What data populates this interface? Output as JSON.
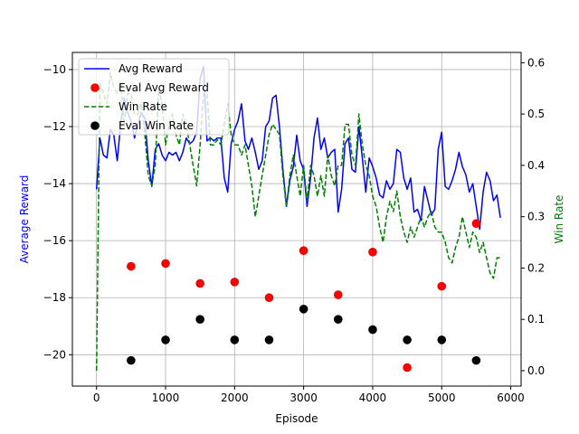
{
  "chart_data": {
    "type": "line",
    "xlabel": "Episode",
    "ylabel": "Average Reward",
    "y2label": "Win Rate",
    "xlim": [
      -350,
      6150
    ],
    "ylim": [
      -21.1,
      -9.4
    ],
    "y2lim": [
      -0.03,
      0.62
    ],
    "xticks": [
      0,
      1000,
      2000,
      3000,
      4000,
      5000,
      6000
    ],
    "yticks": [
      -20,
      -18,
      -16,
      -14,
      -12,
      -10
    ],
    "y2ticks": [
      0.0,
      0.1,
      0.2,
      0.3,
      0.4,
      0.5,
      0.6
    ],
    "grid": true,
    "legend_position": "upper-left",
    "colors": {
      "avg_reward": "#0000ff",
      "eval_avg_reward": "#ff0000",
      "win_rate": "#008000",
      "eval_win_rate": "#000000",
      "ylabel": "#0000ff",
      "y2label": "#008000"
    },
    "legend": [
      {
        "key": "avg_reward",
        "label": "Avg Reward"
      },
      {
        "key": "eval_avg_reward",
        "label": "Eval Avg Reward"
      },
      {
        "key": "win_rate",
        "label": "Win Rate"
      },
      {
        "key": "eval_win_rate",
        "label": "Eval Win Rate"
      }
    ],
    "series": [
      {
        "key": "avg_reward",
        "name": "Avg Reward",
        "axis": "left",
        "style": "solid",
        "x": [
          0,
          50,
          100,
          150,
          200,
          250,
          300,
          350,
          400,
          450,
          500,
          550,
          600,
          650,
          700,
          750,
          800,
          850,
          900,
          950,
          1000,
          1050,
          1100,
          1150,
          1200,
          1250,
          1300,
          1350,
          1400,
          1450,
          1500,
          1550,
          1600,
          1650,
          1700,
          1750,
          1800,
          1850,
          1900,
          1950,
          2000,
          2050,
          2100,
          2150,
          2200,
          2250,
          2300,
          2350,
          2400,
          2450,
          2500,
          2550,
          2600,
          2650,
          2700,
          2750,
          2800,
          2850,
          2900,
          2950,
          3000,
          3050,
          3100,
          3150,
          3200,
          3250,
          3300,
          3350,
          3400,
          3450,
          3500,
          3550,
          3600,
          3650,
          3700,
          3750,
          3800,
          3850,
          3900,
          3950,
          4000,
          4050,
          4100,
          4150,
          4200,
          4250,
          4300,
          4350,
          4400,
          4450,
          4500,
          4550,
          4600,
          4650,
          4700,
          4750,
          4800,
          4850,
          4900,
          4950,
          5000,
          5050,
          5100,
          5150,
          5200,
          5250,
          5300,
          5350,
          5400,
          5450,
          5500,
          5550,
          5600,
          5650,
          5700,
          5750,
          5800,
          5850
        ],
        "y": [
          -14.2,
          -12.4,
          -13.0,
          -13.1,
          -12.1,
          -12.3,
          -13.2,
          -11.9,
          -11.0,
          -11.5,
          -11.8,
          -12.4,
          -11.9,
          -11.5,
          -11.7,
          -13.2,
          -14.1,
          -12.8,
          -12.6,
          -13.0,
          -13.2,
          -12.9,
          -13.0,
          -12.9,
          -13.2,
          -12.9,
          -12.4,
          -12.6,
          -12.5,
          -12.2,
          -10.3,
          -9.9,
          -12.5,
          -12.4,
          -12.5,
          -12.4,
          -12.4,
          -13.8,
          -14.3,
          -12.6,
          -12.1,
          -11.8,
          -11.2,
          -12.5,
          -12.8,
          -12.4,
          -12.9,
          -13.5,
          -13.2,
          -12.0,
          -11.8,
          -11.0,
          -10.9,
          -12.0,
          -13.5,
          -14.8,
          -13.9,
          -13.4,
          -12.3,
          -13.2,
          -13.5,
          -14.8,
          -13.8,
          -12.4,
          -11.7,
          -12.8,
          -12.4,
          -13.1,
          -12.9,
          -12.8,
          -15.0,
          -14.2,
          -12.6,
          -12.4,
          -13.5,
          -13.6,
          -12.0,
          -13.1,
          -14.3,
          -13.1,
          -13.4,
          -13.8,
          -14.4,
          -14.5,
          -13.9,
          -14.2,
          -14.0,
          -12.8,
          -12.9,
          -13.8,
          -14.2,
          -13.8,
          -15.0,
          -14.9,
          -15.3,
          -14.1,
          -14.6,
          -15.1,
          -14.9,
          -12.8,
          -12.2,
          -14.1,
          -14.2,
          -13.9,
          -13.5,
          -12.9,
          -13.4,
          -13.7,
          -14.3,
          -14.0,
          -14.8,
          -15.6,
          -14.3,
          -13.6,
          -13.9,
          -14.6,
          -14.4,
          -15.2
        ]
      },
      {
        "key": "win_rate",
        "name": "Win Rate",
        "axis": "right",
        "style": "dashed",
        "x": [
          0,
          50,
          100,
          150,
          200,
          250,
          300,
          350,
          400,
          450,
          500,
          550,
          600,
          650,
          700,
          750,
          800,
          850,
          900,
          950,
          1000,
          1050,
          1100,
          1150,
          1200,
          1250,
          1300,
          1350,
          1400,
          1450,
          1500,
          1550,
          1600,
          1650,
          1700,
          1750,
          1800,
          1850,
          1900,
          1950,
          2000,
          2050,
          2100,
          2150,
          2200,
          2250,
          2300,
          2350,
          2400,
          2450,
          2500,
          2550,
          2600,
          2650,
          2700,
          2750,
          2800,
          2850,
          2900,
          2950,
          3000,
          3050,
          3100,
          3150,
          3200,
          3250,
          3300,
          3350,
          3400,
          3450,
          3500,
          3550,
          3600,
          3650,
          3700,
          3750,
          3800,
          3850,
          3900,
          3950,
          4000,
          4050,
          4100,
          4150,
          4200,
          4250,
          4300,
          4350,
          4400,
          4450,
          4500,
          4550,
          4600,
          4650,
          4700,
          4750,
          4800,
          4850,
          4900,
          4950,
          5000,
          5050,
          5100,
          5150,
          5200,
          5250,
          5300,
          5350,
          5400,
          5450,
          5500,
          5550,
          5600,
          5650,
          5700,
          5750,
          5800,
          5850
        ],
        "y": [
          0.0,
          0.56,
          0.54,
          0.52,
          0.58,
          0.55,
          0.54,
          0.56,
          0.48,
          0.54,
          0.54,
          0.5,
          0.5,
          0.52,
          0.46,
          0.38,
          0.36,
          0.4,
          0.55,
          0.52,
          0.44,
          0.48,
          0.5,
          0.46,
          0.44,
          0.5,
          0.48,
          0.44,
          0.4,
          0.36,
          0.44,
          0.54,
          0.54,
          0.44,
          0.44,
          0.45,
          0.44,
          0.48,
          0.52,
          0.46,
          0.44,
          0.44,
          0.42,
          0.44,
          0.4,
          0.36,
          0.3,
          0.34,
          0.38,
          0.42,
          0.46,
          0.48,
          0.47,
          0.46,
          0.38,
          0.32,
          0.38,
          0.42,
          0.38,
          0.34,
          0.4,
          0.33,
          0.4,
          0.38,
          0.34,
          0.38,
          0.34,
          0.42,
          0.38,
          0.36,
          0.4,
          0.4,
          0.48,
          0.48,
          0.42,
          0.4,
          0.5,
          0.44,
          0.4,
          0.38,
          0.34,
          0.32,
          0.28,
          0.25,
          0.3,
          0.33,
          0.31,
          0.35,
          0.3,
          0.27,
          0.25,
          0.28,
          0.26,
          0.28,
          0.3,
          0.28,
          0.3,
          0.31,
          0.28,
          0.27,
          0.27,
          0.25,
          0.22,
          0.21,
          0.24,
          0.26,
          0.3,
          0.27,
          0.24,
          0.27,
          0.26,
          0.23,
          0.25,
          0.22,
          0.19,
          0.18,
          0.22,
          0.22
        ]
      },
      {
        "key": "eval_avg_reward",
        "name": "Eval Avg Reward",
        "axis": "left",
        "style": "marker",
        "x": [
          500,
          1000,
          1500,
          2000,
          2500,
          3000,
          3500,
          4000,
          4500,
          5000,
          5500
        ],
        "y": [
          -16.9,
          -16.8,
          -17.5,
          -17.45,
          -18.0,
          -16.35,
          -17.9,
          -16.4,
          -20.45,
          -17.6,
          -15.4
        ]
      },
      {
        "key": "eval_win_rate",
        "name": "Eval Win Rate",
        "axis": "right",
        "style": "marker",
        "x": [
          500,
          1000,
          1500,
          2000,
          2500,
          3000,
          3500,
          4000,
          4500,
          5000,
          5500
        ],
        "y": [
          0.02,
          0.06,
          0.1,
          0.06,
          0.06,
          0.12,
          0.1,
          0.08,
          0.06,
          0.06,
          0.02
        ]
      }
    ]
  }
}
